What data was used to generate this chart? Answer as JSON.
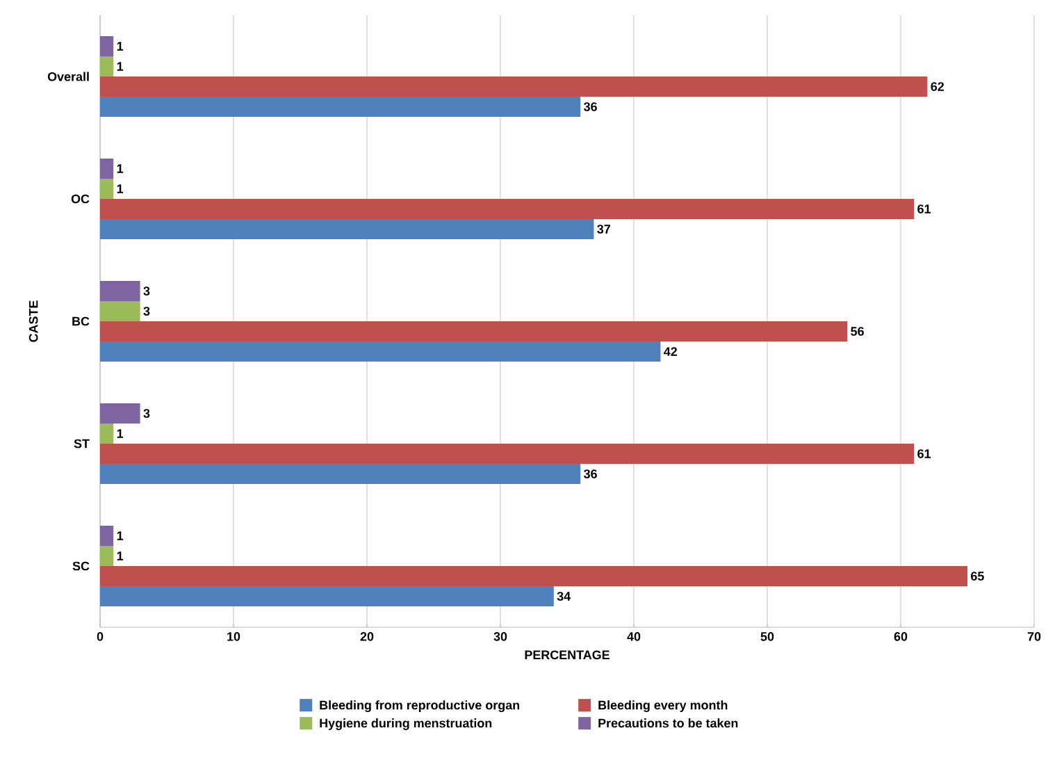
{
  "chart_data": {
    "type": "bar",
    "orientation": "horizontal",
    "xlabel": "PERCENTAGE",
    "ylabel": "CASTE",
    "categories": [
      "Overall",
      "OC",
      "BC",
      "ST",
      "SC"
    ],
    "series": [
      {
        "name": "Bleeding from reproductive organ",
        "color": "#4f81bd",
        "values": [
          36,
          37,
          42,
          36,
          34
        ]
      },
      {
        "name": "Bleeding every month",
        "color": "#c0504d",
        "values": [
          62,
          61,
          56,
          61,
          65
        ]
      },
      {
        "name": "Hygiene during menstruation",
        "color": "#9bbb59",
        "values": [
          1,
          1,
          3,
          1,
          1
        ]
      },
      {
        "name": "Precautions to be taken",
        "color": "#8064a2",
        "values": [
          1,
          1,
          3,
          3,
          1
        ]
      }
    ],
    "xlim": [
      0,
      70
    ],
    "xticks": [
      0,
      10,
      20,
      30,
      40,
      50,
      60,
      70
    ],
    "grid": "x",
    "legend": "bottom",
    "data_labels": true
  }
}
